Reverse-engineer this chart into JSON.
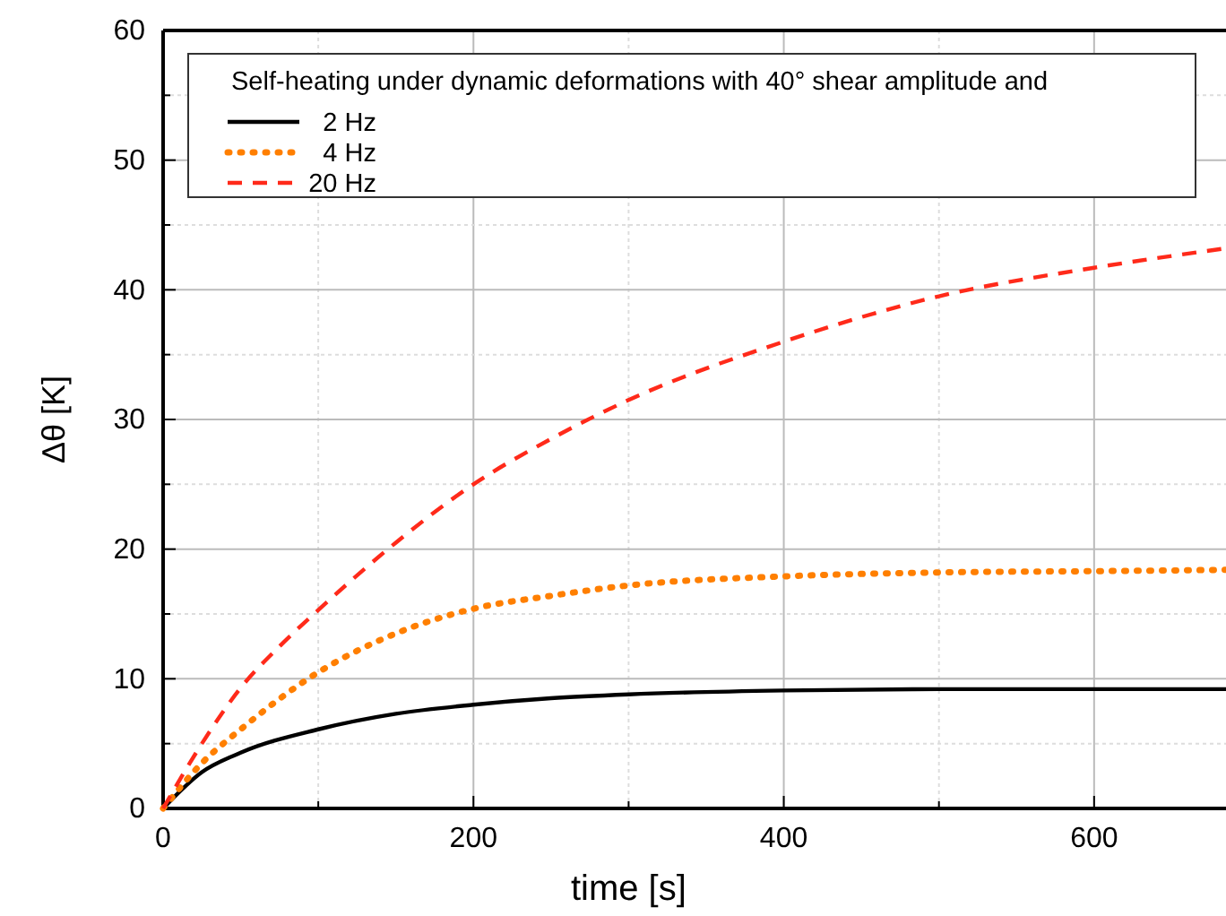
{
  "chart_data": {
    "type": "line",
    "xlabel": "time [s]",
    "ylabel": "Δθ [K]",
    "legend_title": "Self-heating under dynamic deformations with 40° shear amplitude and",
    "xlim": [
      0,
      685
    ],
    "ylim": [
      0,
      60
    ],
    "xticks": [
      0,
      {
        "value": 100,
        "label": null
      },
      200,
      {
        "value": 300,
        "label": null
      },
      400,
      {
        "value": 500,
        "label": null
      },
      600
    ],
    "yticks": [
      0,
      {
        "value": 5,
        "label": null
      },
      10,
      {
        "value": 15,
        "label": null
      },
      20,
      {
        "value": 25,
        "label": null
      },
      30,
      {
        "value": 35,
        "label": null
      },
      40,
      {
        "value": 45,
        "label": null
      },
      50,
      {
        "value": 55,
        "label": null
      },
      60
    ],
    "grid": true,
    "legend": "top",
    "series": [
      {
        "name": "2 Hz",
        "color": "#000000",
        "line_style": "solid",
        "x": [
          0,
          25,
          50,
          100,
          150,
          200,
          250,
          300,
          400,
          500,
          600,
          685
        ],
        "values": [
          0,
          2.8,
          4.3,
          6.1,
          7.3,
          8.0,
          8.5,
          8.8,
          9.1,
          9.2,
          9.2,
          9.2
        ]
      },
      {
        "name": "4 Hz",
        "color": "#ff7f00",
        "line_style": "dotted",
        "x": [
          0,
          25,
          50,
          100,
          150,
          200,
          250,
          300,
          400,
          500,
          600,
          685
        ],
        "values": [
          0,
          3.5,
          6.1,
          10.5,
          13.5,
          15.4,
          16.4,
          17.2,
          17.9,
          18.2,
          18.3,
          18.4
        ]
      },
      {
        "name": "20 Hz",
        "color": "#ff2a1a",
        "line_style": "dashed",
        "x": [
          0,
          25,
          50,
          75,
          100,
          150,
          200,
          250,
          300,
          400,
          500,
          600,
          685
        ],
        "values": [
          0,
          5,
          9.3,
          12.5,
          15.3,
          20.5,
          25,
          28.5,
          31.5,
          36,
          39.5,
          41.7,
          43.2
        ]
      }
    ]
  }
}
